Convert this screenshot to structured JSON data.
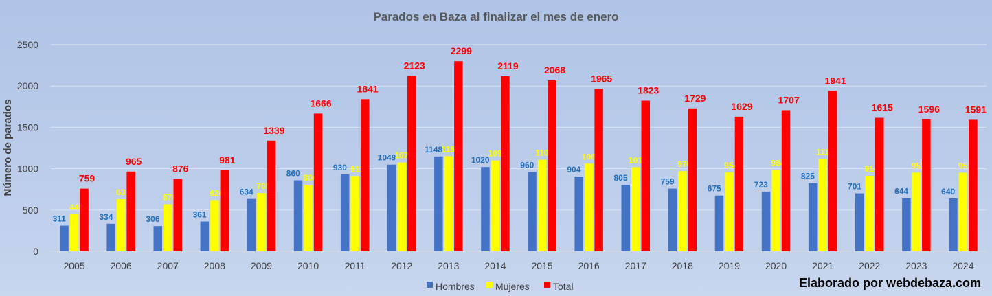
{
  "chart_data": {
    "type": "bar",
    "title": "Parados en Baza al finalizar el mes de enero",
    "xlabel": "",
    "ylabel": "Número de parados",
    "ylim": [
      0,
      2500
    ],
    "yticks": [
      0,
      500,
      1000,
      1500,
      2000,
      2500
    ],
    "grid": true,
    "legend_position": "bottom",
    "categories": [
      "2005",
      "2006",
      "2007",
      "2008",
      "2009",
      "2010",
      "2011",
      "2012",
      "2013",
      "2014",
      "2015",
      "2016",
      "2017",
      "2018",
      "2019",
      "2020",
      "2021",
      "2022",
      "2023",
      "2024"
    ],
    "series": [
      {
        "name": "Hombres",
        "color": "#4472c4",
        "values": [
          311,
          334,
          306,
          361,
          634,
          860,
          930,
          1049,
          1148,
          1020,
          960,
          904,
          805,
          759,
          675,
          723,
          825,
          701,
          644,
          640
        ]
      },
      {
        "name": "Mujeres",
        "color": "#ffff00",
        "values": [
          448,
          631,
          570,
          620,
          705,
          806,
          911,
          1074,
          1151,
          1099,
          1108,
          1061,
          1018,
          970,
          954,
          984,
          1116,
          914,
          952,
          951
        ]
      },
      {
        "name": "Total",
        "color": "#ff0000",
        "values": [
          759,
          965,
          876,
          981,
          1339,
          1666,
          1841,
          2123,
          2299,
          2119,
          2068,
          1965,
          1823,
          1729,
          1629,
          1707,
          1941,
          1615,
          1596,
          1591
        ]
      }
    ]
  },
  "credit": "Elaborado por webdebaza.com"
}
